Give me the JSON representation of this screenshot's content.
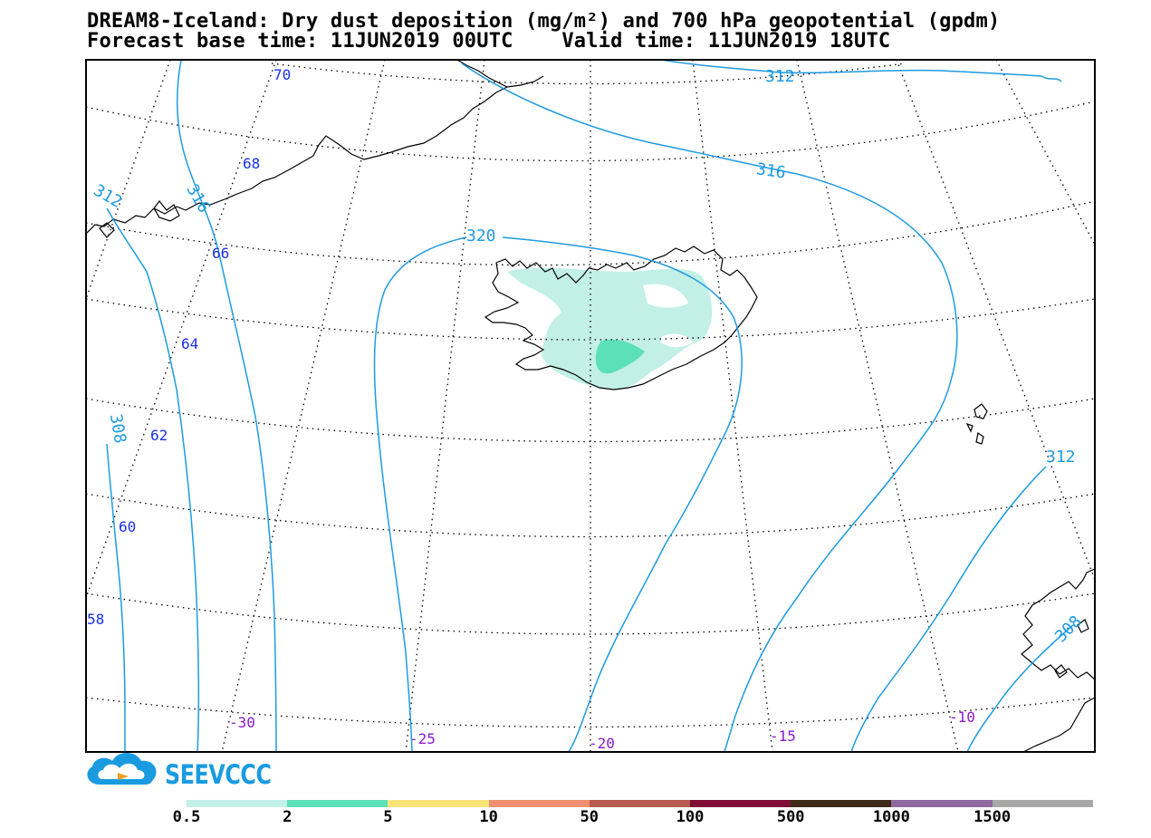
{
  "title": {
    "line1": "DREAM8-Iceland: Dry dust deposition (mg/m²) and 700 hPa geopotential (gpdm)",
    "line2": "Forecast base time: 11JUN2019 00UTC    Valid time: 11JUN2019 18UTC"
  },
  "logo": {
    "text": "SEEVCCC",
    "icon": "cloud-logo-icon"
  },
  "latitude_labels": [
    "70",
    "68",
    "66",
    "64",
    "62",
    "60",
    "58"
  ],
  "longitude_labels": [
    "-30",
    "-25",
    "-20",
    "-15",
    "-10"
  ],
  "contour_labels": [
    "312",
    "316",
    "312",
    "316",
    "320",
    "308",
    "312",
    "308"
  ],
  "colorbar": {
    "colors": [
      "#c2f0e6",
      "#5ce0b8",
      "#f8e57a",
      "#f09070",
      "#b85a4f",
      "#7f0e37",
      "#3f2a17",
      "#8f6a9e",
      "#a8a8a8"
    ],
    "labels": [
      "0.5",
      "2",
      "5",
      "10",
      "50",
      "100",
      "500",
      "1000",
      "1500"
    ]
  },
  "colors": {
    "contour": "#1e9be0",
    "lat_label": "#1a30e6",
    "lon_label": "#8a1ad0",
    "land_light": "#c2f0e6",
    "land_dark": "#5ce0b8"
  }
}
